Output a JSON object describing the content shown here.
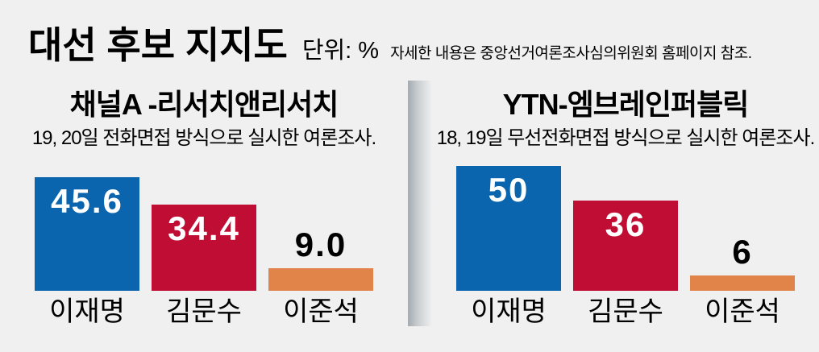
{
  "header": {
    "title": "대선 후보 지지도",
    "unit_label": "단위: %",
    "note": "자세한 내용은 중앙선거여론조사심의위원회 홈페이지 참조."
  },
  "colors": {
    "background": "#f0f0f0",
    "bar_blue": "#0a64ae",
    "bar_red": "#c00d34",
    "bar_orange": "#e08449",
    "value_inside_text": "#ffffff",
    "value_outside_text": "#000000",
    "divider_gray": "#a4aaaf",
    "text": "#000000"
  },
  "chart_data": [
    {
      "type": "bar",
      "panel": "left",
      "title": "채널A -리서치앤리서치",
      "subtitle": "19, 20일 전화면접 방식으로 실시한 여론조사.",
      "categories": [
        "이재명",
        "김문수",
        "이준석"
      ],
      "values": [
        45.6,
        34.4,
        9.0
      ],
      "value_labels": [
        "45.6",
        "34.4",
        "9.0"
      ],
      "bar_colors": [
        "#0a64ae",
        "#c00d34",
        "#e08449"
      ],
      "unit": "%",
      "ylim": [
        0,
        52
      ],
      "grid": false,
      "legend": "none"
    },
    {
      "type": "bar",
      "panel": "right",
      "title": "YTN-엠브레인퍼블릭",
      "subtitle": "18, 19일 무선전화면접 방식으로 실시한 여론조사.",
      "categories": [
        "이재명",
        "김문수",
        "이준석"
      ],
      "values": [
        50,
        36,
        6
      ],
      "value_labels": [
        "50",
        "36",
        "6"
      ],
      "bar_colors": [
        "#0a64ae",
        "#c00d34",
        "#e08449"
      ],
      "unit": "%",
      "ylim": [
        0,
        52
      ],
      "grid": false,
      "legend": "none"
    }
  ]
}
